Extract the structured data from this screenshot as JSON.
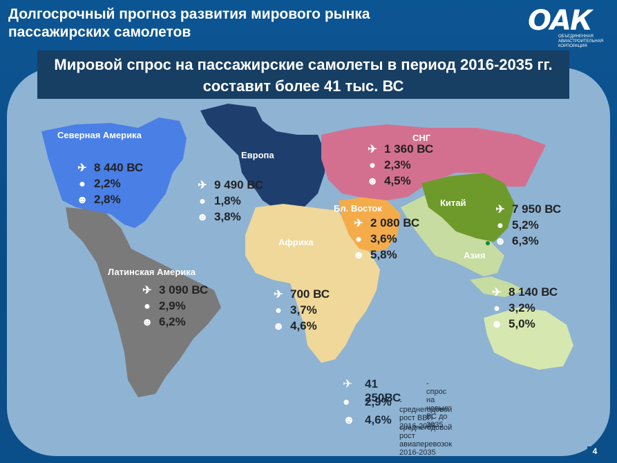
{
  "header": {
    "title_line1": "Долгосрочный прогноз развития мирового рынка",
    "title_line2": "пассажирских самолетов"
  },
  "logo": {
    "mark": "ОАК",
    "sub": "ОБЪЕДИНЕННАЯ АВИАСТРОИТЕЛЬНАЯ КОРПОРАЦИЯ"
  },
  "banner": {
    "line1": "Мировой спрос на пассажирские самолеты в период 2016-2035 гг.",
    "line2": "составит более 41 тыс. ВС"
  },
  "regions": [
    {
      "name": "Северная Америка",
      "aircraft": "8 440 ВС",
      "gdp": "2,2%",
      "traffic": "2,8%"
    },
    {
      "name": "Европа",
      "aircraft": "9 490 ВС",
      "gdp": "1,8%",
      "traffic": "3,8%"
    },
    {
      "name": "СНГ",
      "aircraft": "1 360 ВС",
      "gdp": "2,3%",
      "traffic": "4,5%"
    },
    {
      "name": "Бл. Восток",
      "aircraft": "2 080 ВС",
      "gdp": "3,6%",
      "traffic": "5,8%"
    },
    {
      "name": "Китай",
      "aircraft": "7 950 ВС",
      "gdp": "5,2%",
      "traffic": "6,3%"
    },
    {
      "name": "Азия",
      "aircraft": "8 140 ВС",
      "gdp": "3,2%",
      "traffic": "5,0%"
    },
    {
      "name": "Африка",
      "aircraft": "700 ВС",
      "gdp": "3,7%",
      "traffic": "4,6%"
    },
    {
      "name": "Латинская Америка",
      "aircraft": "3 090 ВС",
      "gdp": "2,9%",
      "traffic": "6,2%"
    }
  ],
  "legend": {
    "total_value": "41 250ВС",
    "total_desc": "- спрос на новые ВС до 2035",
    "gdp_value": "2,9%",
    "gdp_desc": "- среднегодовой рост ВВП 2016-2035",
    "traffic_value": "4,6%",
    "traffic_desc": "- среднегодовой рост авиаперевозок 2016-2035"
  },
  "icons": {
    "aircraft": "plane-icon",
    "gdp": "coin-icon",
    "traffic": "people-icon"
  },
  "colors": {
    "background": "#0b4f8a",
    "ocean": "#8fb3d3",
    "banner": "#173e63",
    "north_america": "#4a7fe6",
    "europe": "#1e3f6e",
    "cis": "#d4708f",
    "middle_east": "#f4ac4b",
    "china": "#6e9a2c",
    "asia": "#c7dca0",
    "africa": "#efd89a",
    "latin_america": "#7a7a7a",
    "australia": "#d6e8b0"
  },
  "page_number": "4"
}
